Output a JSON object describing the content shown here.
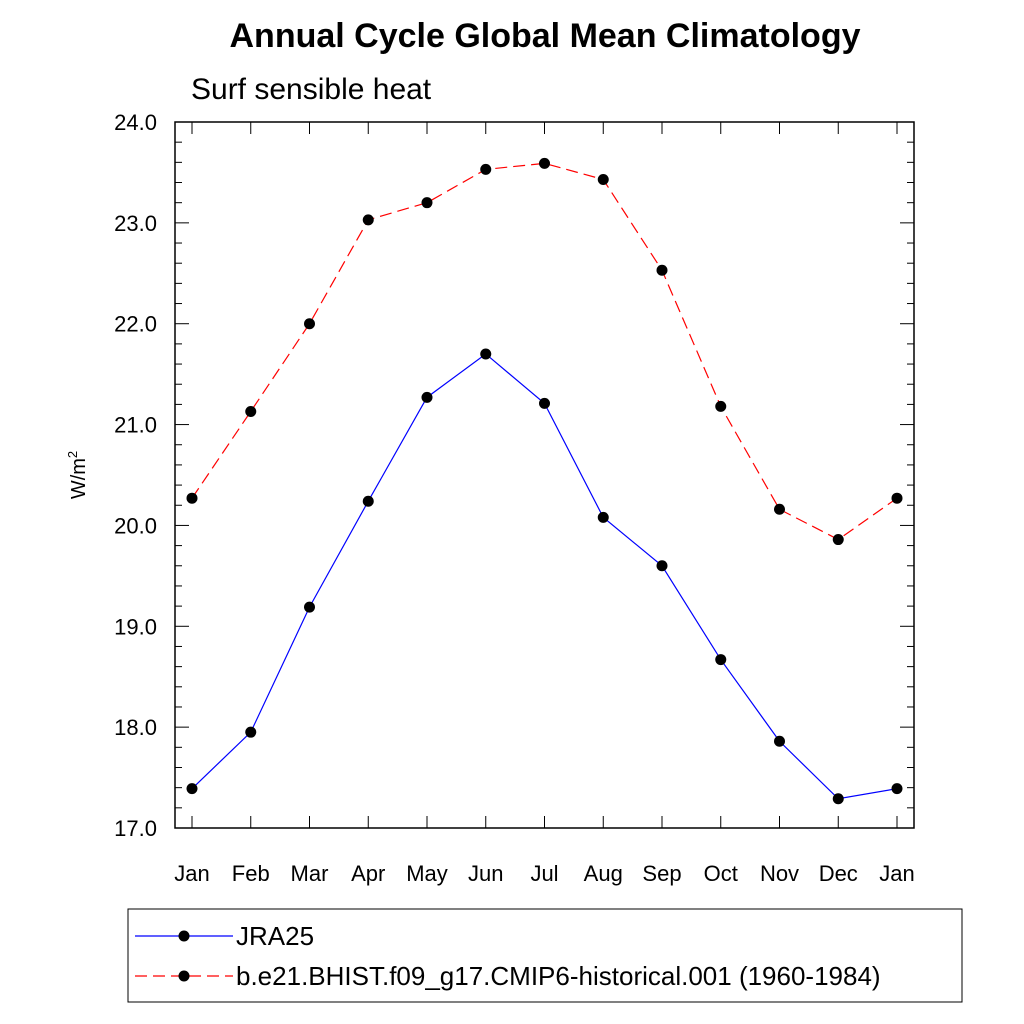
{
  "chart_data": {
    "type": "line",
    "title": "Annual Cycle Global Mean Climatology",
    "subtitle": "Surf sensible heat",
    "xlabel": "",
    "ylabel": "W/m",
    "ylabel_sup": "2",
    "categories": [
      "Jan",
      "Feb",
      "Mar",
      "Apr",
      "May",
      "Jun",
      "Jul",
      "Aug",
      "Sep",
      "Oct",
      "Nov",
      "Dec",
      "Jan"
    ],
    "ylim": [
      17.0,
      24.0
    ],
    "yticks": [
      "17.0",
      "18.0",
      "19.0",
      "20.0",
      "21.0",
      "22.0",
      "23.0",
      "24.0"
    ],
    "grid": false,
    "legend_position": "bottom",
    "series": [
      {
        "name": "JRA25",
        "color": "#0000ff",
        "line_style": "solid",
        "marker": "filled-circle",
        "values": [
          17.39,
          17.95,
          19.19,
          20.24,
          21.27,
          21.7,
          21.21,
          20.08,
          19.6,
          18.67,
          17.86,
          17.29,
          17.39
        ]
      },
      {
        "name": "b.e21.BHIST.f09_g17.CMIP6-historical.001 (1960-1984)",
        "color": "#ff0000",
        "line_style": "dashed",
        "marker": "filled-circle",
        "values": [
          20.27,
          21.13,
          22.0,
          23.03,
          23.2,
          23.53,
          23.59,
          23.43,
          22.53,
          21.18,
          20.16,
          19.86,
          20.27
        ]
      }
    ]
  }
}
